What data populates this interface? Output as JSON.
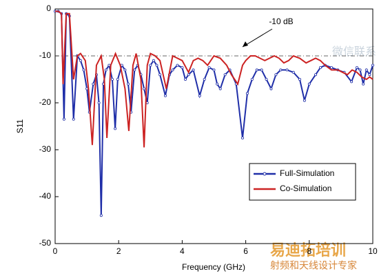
{
  "chart_data": {
    "type": "line",
    "xlabel": "Frequency (GHz)",
    "ylabel": "S11",
    "xlim": [
      0,
      10
    ],
    "ylim": [
      -50,
      0
    ],
    "xticks": [
      0,
      2,
      4,
      6,
      8,
      10
    ],
    "yticks": [
      0,
      -10,
      -20,
      -30,
      -40,
      -50
    ],
    "reference_line": -10,
    "annotation": "-10 dB",
    "legend": "lower right",
    "series": [
      {
        "name": "Full-Simulation",
        "color": "#1f2ea8",
        "markers": true,
        "x": [
          0,
          0.1,
          0.2,
          0.28,
          0.35,
          0.45,
          0.58,
          0.7,
          0.8,
          0.9,
          1.0,
          1.08,
          1.2,
          1.3,
          1.38,
          1.45,
          1.52,
          1.6,
          1.7,
          1.8,
          1.89,
          1.97,
          2.1,
          2.2,
          2.3,
          2.39,
          2.5,
          2.6,
          2.7,
          2.8,
          2.9,
          3.0,
          3.1,
          3.2,
          3.3,
          3.47,
          3.6,
          3.7,
          3.85,
          4.0,
          4.1,
          4.2,
          4.35,
          4.55,
          4.7,
          4.85,
          5.0,
          5.1,
          5.2,
          5.35,
          5.5,
          5.7,
          5.9,
          6.05,
          6.2,
          6.35,
          6.5,
          6.65,
          6.8,
          6.95,
          7.1,
          7.3,
          7.5,
          7.7,
          7.85,
          8.0,
          8.2,
          8.35,
          8.5,
          8.7,
          8.9,
          9.1,
          9.33,
          9.5,
          9.6,
          9.7,
          9.8,
          9.9,
          10
        ],
        "values": [
          -0.5,
          -0.5,
          -1,
          -23.5,
          -1,
          -1.5,
          -23.5,
          -10,
          -11,
          -13,
          -17,
          -22,
          -16,
          -14,
          -20,
          -44,
          -16,
          -13,
          -12,
          -15,
          -25.5,
          -15,
          -12,
          -13,
          -16,
          -22,
          -13,
          -12,
          -14,
          -17,
          -20,
          -12,
          -11,
          -12,
          -14,
          -18.5,
          -14,
          -13,
          -12,
          -12.5,
          -15,
          -14,
          -13,
          -18.5,
          -15,
          -12.5,
          -13,
          -16,
          -17,
          -14,
          -13,
          -16,
          -27.5,
          -18,
          -15,
          -13,
          -13,
          -15,
          -17,
          -14,
          -13,
          -13,
          -13.5,
          -15,
          -19.5,
          -16,
          -14,
          -12.5,
          -12,
          -12.5,
          -13,
          -13.5,
          -15.5,
          -12.5,
          -13,
          -16,
          -13,
          -14,
          -12
        ]
      },
      {
        "name": "Co-Simulation",
        "color": "#cc2222",
        "markers": false,
        "x": [
          0,
          0.1,
          0.2,
          0.25,
          0.35,
          0.45,
          0.58,
          0.7,
          0.8,
          0.95,
          1.05,
          1.17,
          1.3,
          1.45,
          1.55,
          1.63,
          1.75,
          1.9,
          2.05,
          2.2,
          2.32,
          2.45,
          2.55,
          2.7,
          2.8,
          2.9,
          3.0,
          3.15,
          3.3,
          3.5,
          3.7,
          3.85,
          4.0,
          4.2,
          4.35,
          4.5,
          4.65,
          4.8,
          5.0,
          5.2,
          5.4,
          5.55,
          5.75,
          5.9,
          6.0,
          6.15,
          6.3,
          6.45,
          6.6,
          6.75,
          6.9,
          7.05,
          7.2,
          7.35,
          7.5,
          7.7,
          7.9,
          8.05,
          8.2,
          8.35,
          8.5,
          8.7,
          8.9,
          9.05,
          9.2,
          9.35,
          9.5,
          9.65,
          9.8,
          9.9,
          10
        ],
        "values": [
          -0.5,
          -0.5,
          -1,
          -16,
          -1,
          -1,
          -15,
          -10,
          -9.5,
          -11,
          -17,
          -29,
          -12,
          -10,
          -15,
          -27.5,
          -12,
          -9.5,
          -12,
          -17,
          -26,
          -12,
          -9.5,
          -15,
          -29.5,
          -12,
          -9.5,
          -10,
          -11,
          -17,
          -10,
          -10.5,
          -11,
          -13.5,
          -11,
          -10.5,
          -11,
          -12,
          -10,
          -10.5,
          -12,
          -14,
          -16,
          -12,
          -11,
          -10,
          -10,
          -10.5,
          -11,
          -10.5,
          -10,
          -10.5,
          -11.5,
          -11,
          -10,
          -10.5,
          -11.5,
          -11,
          -10.5,
          -11,
          -12,
          -13,
          -13,
          -13.5,
          -14,
          -13,
          -13.5,
          -14.5,
          -15,
          -14.5,
          -15
        ]
      }
    ],
    "watermarks": [
      "微信联系",
      "易迪拓培训",
      "射频和天线设计专家"
    ]
  }
}
